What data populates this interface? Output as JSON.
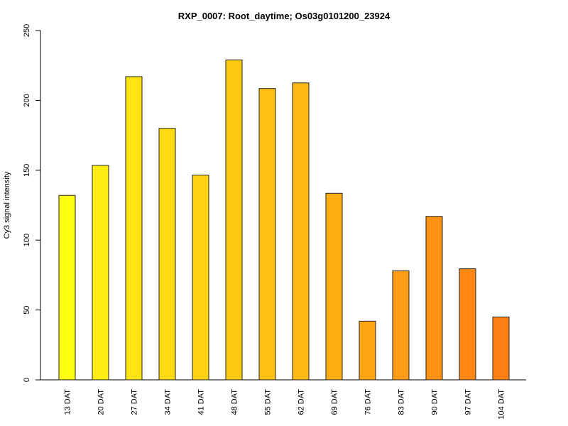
{
  "chart_data": {
    "type": "bar",
    "title": "RXP_0007: Root_daytime; Os03g0101200_23924",
    "xlabel": "",
    "ylabel": "Cy3 signal intensity",
    "ylim": [
      0,
      250
    ],
    "y_ticks": [
      0,
      50,
      100,
      150,
      200,
      250
    ],
    "grid": false,
    "categories": [
      "13 DAT",
      "20 DAT",
      "27 DAT",
      "34 DAT",
      "41 DAT",
      "48 DAT",
      "55 DAT",
      "62 DAT",
      "69 DAT",
      "76 DAT",
      "83 DAT",
      "90 DAT",
      "97 DAT",
      "104 DAT"
    ],
    "values": [
      132,
      153.5,
      217,
      180,
      146.5,
      229,
      208.5,
      212.5,
      133.5,
      42,
      78,
      117,
      79.5,
      45
    ],
    "colors": [
      "#ffff14",
      "#ffed14",
      "#ffe414",
      "#ffdb14",
      "#ffd314",
      "#ffca14",
      "#ffc014",
      "#ffb814",
      "#ffae14",
      "#ffa514",
      "#ff9b14",
      "#ff9214",
      "#ff8814",
      "#ff7f14"
    ]
  }
}
